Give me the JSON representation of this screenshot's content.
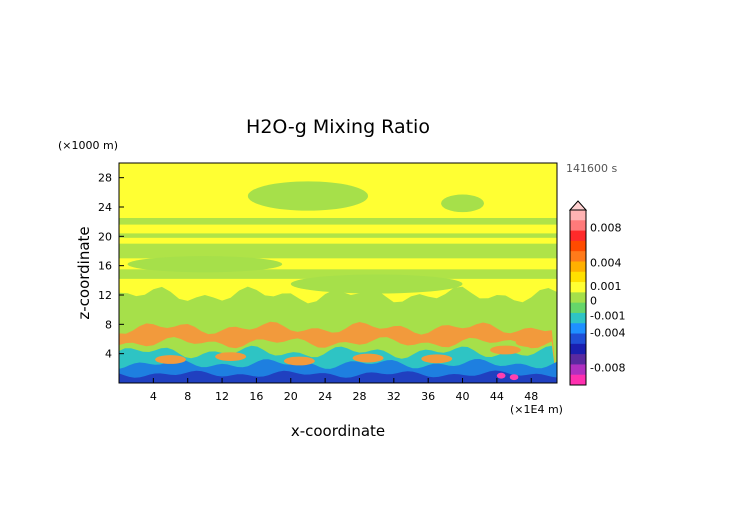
{
  "chart_data": {
    "type": "heatmap",
    "title": "H2O-g Mixing Ratio",
    "xlabel": "x-coordinate",
    "ylabel": "z-coordinate",
    "x_unit": "(×1E4 m)",
    "y_unit": "(×1000 m)",
    "time_label": "141600 s",
    "xlim": [
      0,
      51
    ],
    "ylim": [
      0,
      30
    ],
    "xticks": [
      4,
      8,
      12,
      16,
      20,
      24,
      28,
      32,
      36,
      40,
      44,
      48
    ],
    "yticks": [
      4,
      8,
      12,
      16,
      20,
      24,
      28
    ],
    "xtick_labels": [
      "4",
      "8",
      "12",
      "16",
      "20",
      "24",
      "28",
      "32",
      "36",
      "40",
      "44",
      "48"
    ],
    "ytick_labels": [
      "4",
      "8",
      "12",
      "16",
      "20",
      "24",
      "28"
    ],
    "colorbar": {
      "labels": [
        {
          "text": "0.008",
          "value": 0.008
        },
        {
          "text": "0.004",
          "value": 0.004
        },
        {
          "text": "0.001",
          "value": 0.001
        },
        {
          "text": "0",
          "value": 0
        },
        {
          "text": "-0.001",
          "value": -0.001
        },
        {
          "text": "-0.004",
          "value": -0.004
        },
        {
          "text": "-0.008",
          "value": -0.008
        }
      ],
      "colors_top_to_bottom": [
        "#ffb3b3",
        "#ff7a7a",
        "#ff2a2a",
        "#ff4b00",
        "#ff7a1a",
        "#ffb000",
        "#ffe000",
        "#ffff33",
        "#a6e04a",
        "#66d66a",
        "#2ec4c4",
        "#1e90ff",
        "#1f4fd6",
        "#1a1fb0",
        "#5a2aa0",
        "#b030c0",
        "#ff30b0"
      ]
    },
    "field_colors": {
      "upper": "#ffff33",
      "mid": "#a6e04a",
      "warm": "#f29a3c",
      "moist": "#2ec4c4",
      "deep": "#1e7fe0",
      "dark": "#2040c0",
      "pink": "#ff40b0"
    }
  }
}
